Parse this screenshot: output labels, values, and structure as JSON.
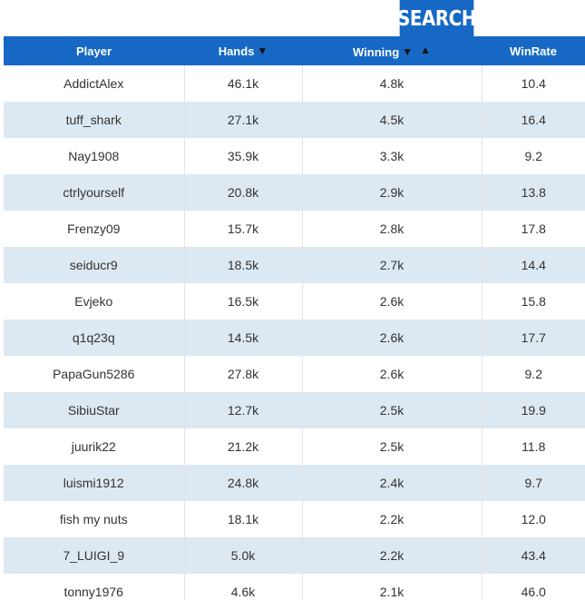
{
  "search_button": "SEARCH",
  "columns": {
    "player": "Player",
    "hands": "Hands",
    "winning": "Winning",
    "winrate": "WinRate"
  },
  "sort_icons": {
    "down": "▼",
    "up": "▲"
  },
  "rows": [
    {
      "player": "AddictAlex",
      "hands": "46.1k",
      "winning": "4.8k",
      "winrate": "10.4"
    },
    {
      "player": "tuff_shark",
      "hands": "27.1k",
      "winning": "4.5k",
      "winrate": "16.4"
    },
    {
      "player": "Nay1908",
      "hands": "35.9k",
      "winning": "3.3k",
      "winrate": "9.2"
    },
    {
      "player": "ctrlyourself",
      "hands": "20.8k",
      "winning": "2.9k",
      "winrate": "13.8"
    },
    {
      "player": "Frenzy09",
      "hands": "15.7k",
      "winning": "2.8k",
      "winrate": "17.8"
    },
    {
      "player": "seiducr9",
      "hands": "18.5k",
      "winning": "2.7k",
      "winrate": "14.4"
    },
    {
      "player": "Evjeko",
      "hands": "16.5k",
      "winning": "2.6k",
      "winrate": "15.8"
    },
    {
      "player": "q1q23q",
      "hands": "14.5k",
      "winning": "2.6k",
      "winrate": "17.7"
    },
    {
      "player": "PapaGun5286",
      "hands": "27.8k",
      "winning": "2.6k",
      "winrate": "9.2"
    },
    {
      "player": "SibiuStar",
      "hands": "12.7k",
      "winning": "2.5k",
      "winrate": "19.9"
    },
    {
      "player": "juurik22",
      "hands": "21.2k",
      "winning": "2.5k",
      "winrate": "11.8"
    },
    {
      "player": "luismi1912",
      "hands": "24.8k",
      "winning": "2.4k",
      "winrate": "9.7"
    },
    {
      "player": "fish my nuts",
      "hands": "18.1k",
      "winning": "2.2k",
      "winrate": "12.0"
    },
    {
      "player": "7_LUIGI_9",
      "hands": "5.0k",
      "winning": "2.2k",
      "winrate": "43.4"
    },
    {
      "player": "tonny1976",
      "hands": "4.6k",
      "winning": "2.1k",
      "winrate": "46.0"
    }
  ]
}
